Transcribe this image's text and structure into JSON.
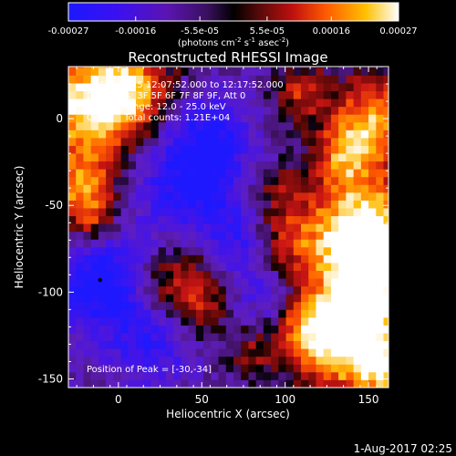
{
  "colorbar": {
    "tick_labels": [
      "-0.00027",
      "-0.00016",
      "-5.5e-05",
      "5.5e-05",
      "0.00016",
      "0.00027"
    ],
    "tick_values": [
      -0.00027,
      -0.00016,
      -5.5e-05,
      5.5e-05,
      0.00016,
      0.00027
    ],
    "units_prefix": "(photons cm",
    "units_exp1": "-2",
    "units_mid1": " s",
    "units_exp2": "-1",
    "units_mid2": " asec",
    "units_exp3": "-2",
    "units_suffix": ")",
    "range": [
      -0.00027,
      0.00027
    ]
  },
  "chart_data": {
    "type": "heatmap",
    "title": "Reconstructed RHESSI Image",
    "xlabel": "Heliocentric X (arcsec)",
    "ylabel": "Heliocentric Y (arcsec)",
    "xlim": [
      -30,
      162
    ],
    "ylim": [
      -155,
      30
    ],
    "xticks": [
      0,
      50,
      100,
      150
    ],
    "yticks": [
      0,
      -50,
      -100,
      -150
    ],
    "xtick_labels": [
      "0",
      "50",
      "100",
      "150"
    ],
    "ytick_labels": [
      "0",
      "-50",
      "-100",
      "-150"
    ],
    "annotations": {
      "time_range": "7-Feb-2015 12:07:52.000 to 12:17:52.000",
      "detectors": "Detectors: 3F 5F 6F 7F 8F 9F, Att 0",
      "energy": "Energy Range: 12.0 - 25.0 keV",
      "clean": "Clean    Total counts: 1.21E+04",
      "peak": "Position of Peak = [-30,-34]"
    },
    "peak_position": [
      -30,
      -34
    ],
    "marker_position": [
      -11,
      -93
    ],
    "colormap": "rainbow (blue-purple-red-yellow-white)"
  },
  "footer": {
    "date": "1-Aug-2017 02:25"
  }
}
